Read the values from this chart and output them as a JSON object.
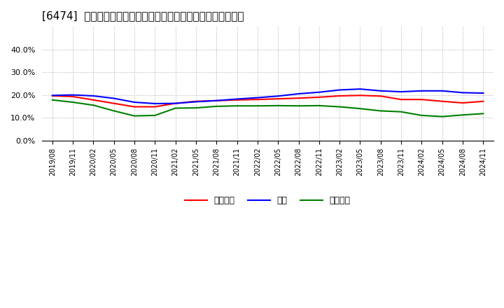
{
  "title": "[6474]  売上債権、在庫、買入債務の総資産に対する比率の推移",
  "legend_labels": [
    "売上債権",
    "在庫",
    "買入債務"
  ],
  "line_colors": [
    "#ff0000",
    "#0000ff",
    "#008000"
  ],
  "background_color": "#ffffff",
  "plot_bg_color": "#ffffff",
  "grid_color": "#aaaaaa",
  "ylim": [
    0.0,
    0.5
  ],
  "yticks": [
    0.0,
    0.1,
    0.2,
    0.3,
    0.4
  ],
  "dates": [
    "2019/08",
    "2019/11",
    "2020/02",
    "2020/05",
    "2020/08",
    "2020/11",
    "2021/02",
    "2021/05",
    "2021/08",
    "2021/11",
    "2022/02",
    "2022/05",
    "2022/08",
    "2022/11",
    "2023/02",
    "2023/05",
    "2023/08",
    "2023/11",
    "2024/02",
    "2024/05",
    "2024/08",
    "2024/11"
  ],
  "receivables": [
    0.196,
    0.193,
    0.178,
    0.163,
    0.148,
    0.148,
    0.163,
    0.172,
    0.175,
    0.178,
    0.18,
    0.183,
    0.186,
    0.19,
    0.196,
    0.198,
    0.195,
    0.18,
    0.18,
    0.172,
    0.165,
    0.172
  ],
  "inventory": [
    0.198,
    0.2,
    0.196,
    0.185,
    0.168,
    0.162,
    0.163,
    0.17,
    0.175,
    0.182,
    0.188,
    0.195,
    0.205,
    0.212,
    0.222,
    0.226,
    0.218,
    0.214,
    0.218,
    0.218,
    0.21,
    0.208
  ],
  "payables": [
    0.178,
    0.168,
    0.155,
    0.13,
    0.108,
    0.11,
    0.142,
    0.143,
    0.15,
    0.152,
    0.152,
    0.153,
    0.152,
    0.153,
    0.148,
    0.14,
    0.13,
    0.126,
    0.11,
    0.105,
    0.112,
    0.118
  ]
}
